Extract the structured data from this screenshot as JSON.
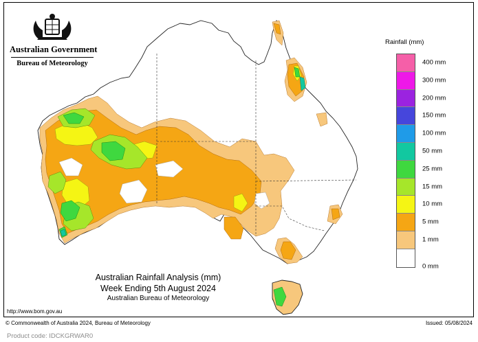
{
  "header": {
    "government": "Australian Government",
    "bureau": "Bureau of Meteorology",
    "crest_icon": "commonwealth-coat-of-arms-icon"
  },
  "map": {
    "title": "Australian Rainfall Analysis (mm)",
    "period": "Week Ending 5th August 2024",
    "agency": "Australian Bureau of Meteorology",
    "url": "http://www.bom.gov.au"
  },
  "legend": {
    "title": "Rainfall (mm)",
    "labels": [
      "400 mm",
      "300 mm",
      "200 mm",
      "150 mm",
      "100 mm",
      "50 mm",
      "25 mm",
      "15 mm",
      "10 mm",
      "5 mm",
      "1 mm",
      "0 mm"
    ],
    "colors": [
      "#f55fa8",
      "#ee18e8",
      "#9b23e0",
      "#4646dc",
      "#1f9be8",
      "#12c8a0",
      "#3fd83f",
      "#a6e62a",
      "#f5f514",
      "#f5a614",
      "#f7c77c",
      "#ffffff"
    ]
  },
  "footer": {
    "copyright": "© Commonwealth of Australia 2024, Bureau of Meteorology",
    "issued": "Issued: 05/08/2024",
    "product_code": "Product code: IDCKGRWAR0"
  }
}
